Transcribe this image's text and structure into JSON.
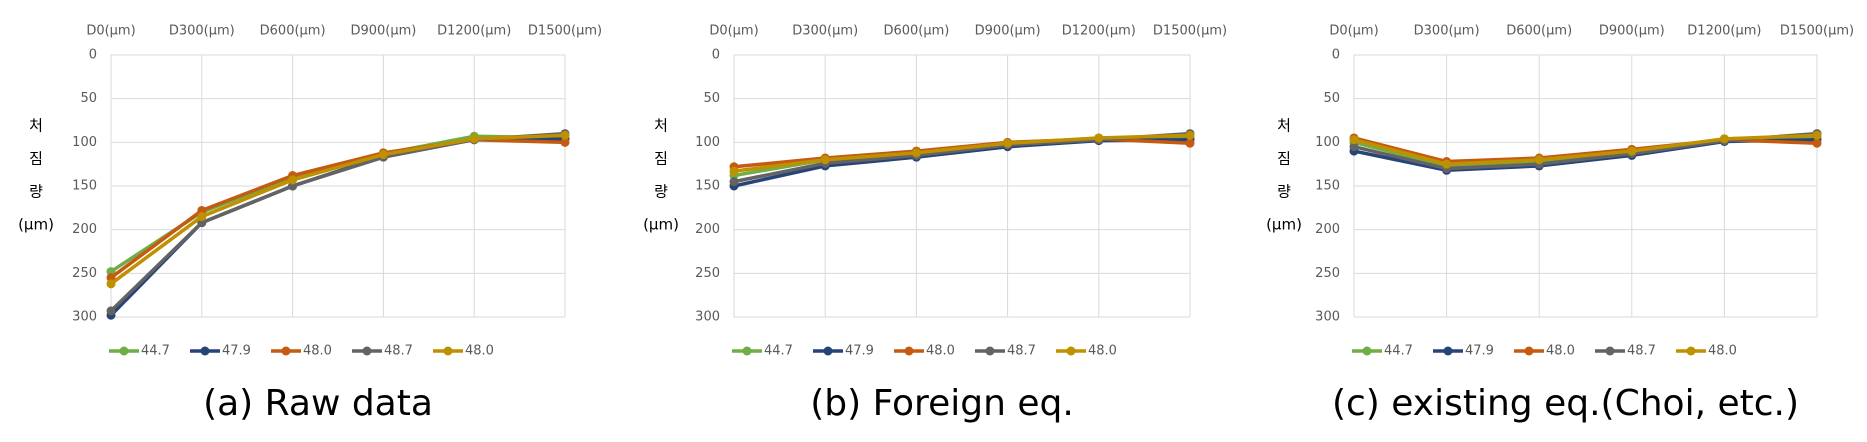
{
  "chart_data": [
    {
      "type": "line",
      "caption": "(a) Raw data",
      "y_label": [
        "처",
        "짐",
        "량",
        "(μm)"
      ],
      "categories": [
        "D0(μm)",
        "D300(μm)",
        "D600(μm)",
        "D900(μm)",
        "D1200(μm)",
        "D1500(μm)"
      ],
      "ylim": [
        0,
        300
      ],
      "yticks": [
        0,
        50,
        100,
        150,
        200,
        250,
        300
      ],
      "y_inverted": true,
      "grid": true,
      "x_axis_position": "top",
      "legend": "bottom",
      "series": [
        {
          "name": "44.7",
          "color": "#70ad47",
          "values": [
            248,
            180,
            140,
            113,
            93,
            95
          ]
        },
        {
          "name": "47.9",
          "color": "#264478",
          "values": [
            298,
            192,
            150,
            116,
            97,
            96
          ]
        },
        {
          "name": "48.0",
          "color": "#c55a11",
          "values": [
            255,
            178,
            138,
            112,
            97,
            100
          ]
        },
        {
          "name": "48.7",
          "color": "#636363",
          "values": [
            293,
            192,
            150,
            117,
            97,
            90
          ]
        },
        {
          "name": "48.0",
          "color": "#bf9000",
          "values": [
            262,
            185,
            143,
            114,
            96,
            92
          ]
        }
      ]
    },
    {
      "type": "line",
      "caption": "(b) Foreign eq.",
      "y_label": [
        "처",
        "짐",
        "량",
        "(μm)"
      ],
      "categories": [
        "D0(μm)",
        "D300(μm)",
        "D600(μm)",
        "D900(μm)",
        "D1200(μm)",
        "D1500(μm)"
      ],
      "ylim": [
        0,
        300
      ],
      "yticks": [
        0,
        50,
        100,
        150,
        200,
        250,
        300
      ],
      "y_inverted": true,
      "grid": true,
      "x_axis_position": "top",
      "legend": "bottom",
      "series": [
        {
          "name": "44.7",
          "color": "#70ad47",
          "values": [
            138,
            120,
            113,
            102,
            95,
            94
          ]
        },
        {
          "name": "47.9",
          "color": "#264478",
          "values": [
            150,
            127,
            117,
            105,
            98,
            97
          ]
        },
        {
          "name": "48.0",
          "color": "#c55a11",
          "values": [
            128,
            118,
            110,
            100,
            96,
            101
          ]
        },
        {
          "name": "48.7",
          "color": "#636363",
          "values": [
            145,
            124,
            115,
            103,
            97,
            90
          ]
        },
        {
          "name": "48.0",
          "color": "#bf9000",
          "values": [
            133,
            120,
            112,
            101,
            95,
            92
          ]
        }
      ]
    },
    {
      "type": "line",
      "caption": "(c) existing eq.(Choi, etc.)",
      "y_label": [
        "처",
        "짐",
        "량",
        "(μm)"
      ],
      "categories": [
        "D0(μm)",
        "D300(μm)",
        "D600(μm)",
        "D900(μm)",
        "D1200(μm)",
        "D1500(μm)"
      ],
      "ylim": [
        0,
        300
      ],
      "yticks": [
        0,
        50,
        100,
        150,
        200,
        250,
        300
      ],
      "y_inverted": true,
      "grid": true,
      "x_axis_position": "top",
      "legend": "bottom",
      "series": [
        {
          "name": "44.7",
          "color": "#70ad47",
          "values": [
            100,
            127,
            123,
            112,
            96,
            94
          ]
        },
        {
          "name": "47.9",
          "color": "#264478",
          "values": [
            110,
            132,
            127,
            115,
            99,
            97
          ]
        },
        {
          "name": "48.0",
          "color": "#c55a11",
          "values": [
            95,
            122,
            118,
            108,
            97,
            101
          ]
        },
        {
          "name": "48.7",
          "color": "#636363",
          "values": [
            105,
            130,
            125,
            113,
            98,
            90
          ]
        },
        {
          "name": "48.0",
          "color": "#bf9000",
          "values": [
            97,
            125,
            120,
            110,
            96,
            92
          ]
        }
      ]
    }
  ]
}
